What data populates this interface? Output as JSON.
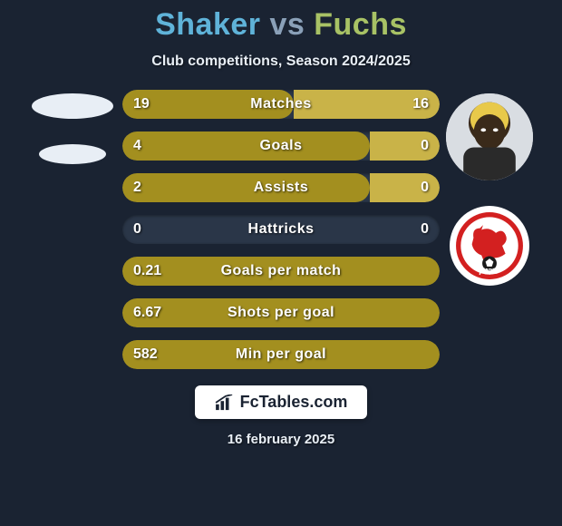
{
  "title": {
    "player1": "Shaker",
    "vs": "vs",
    "player2": "Fuchs",
    "player1_color": "#5fb3d9",
    "vs_color": "#8aa0b8",
    "player2_color": "#a8c265"
  },
  "subtitle": "Club competitions, Season 2024/2025",
  "background_color": "#1a2332",
  "bar_track_color": "#2a3648",
  "bar_left_color": "#a38f1f",
  "bar_right_color": "#c9b348",
  "text_color": "#ffffff",
  "stats": [
    {
      "label": "Matches",
      "left_val": "19",
      "right_val": "16",
      "left_pct": 54,
      "right_pct": 46
    },
    {
      "label": "Goals",
      "left_val": "4",
      "right_val": "0",
      "left_pct": 78,
      "right_pct": 22
    },
    {
      "label": "Assists",
      "left_val": "2",
      "right_val": "0",
      "left_pct": 78,
      "right_pct": 22
    },
    {
      "label": "Hattricks",
      "left_val": "0",
      "right_val": "0",
      "left_pct": 0,
      "right_pct": 0
    },
    {
      "label": "Goals per match",
      "left_val": "0.21",
      "right_val": "",
      "left_pct": 100,
      "right_pct": 0
    },
    {
      "label": "Shots per goal",
      "left_val": "6.67",
      "right_val": "",
      "left_pct": 100,
      "right_pct": 0
    },
    {
      "label": "Min per goal",
      "left_val": "582",
      "right_val": "",
      "left_pct": 100,
      "right_pct": 0
    }
  ],
  "left_avatars": {
    "player_present": false,
    "club_present": false
  },
  "right_avatars": {
    "player_present": true,
    "club_present": true,
    "club_bg": "#ffffff",
    "club_accent": "#d32020"
  },
  "footer": {
    "brand": "FcTables.com",
    "date": "16 february 2025"
  }
}
